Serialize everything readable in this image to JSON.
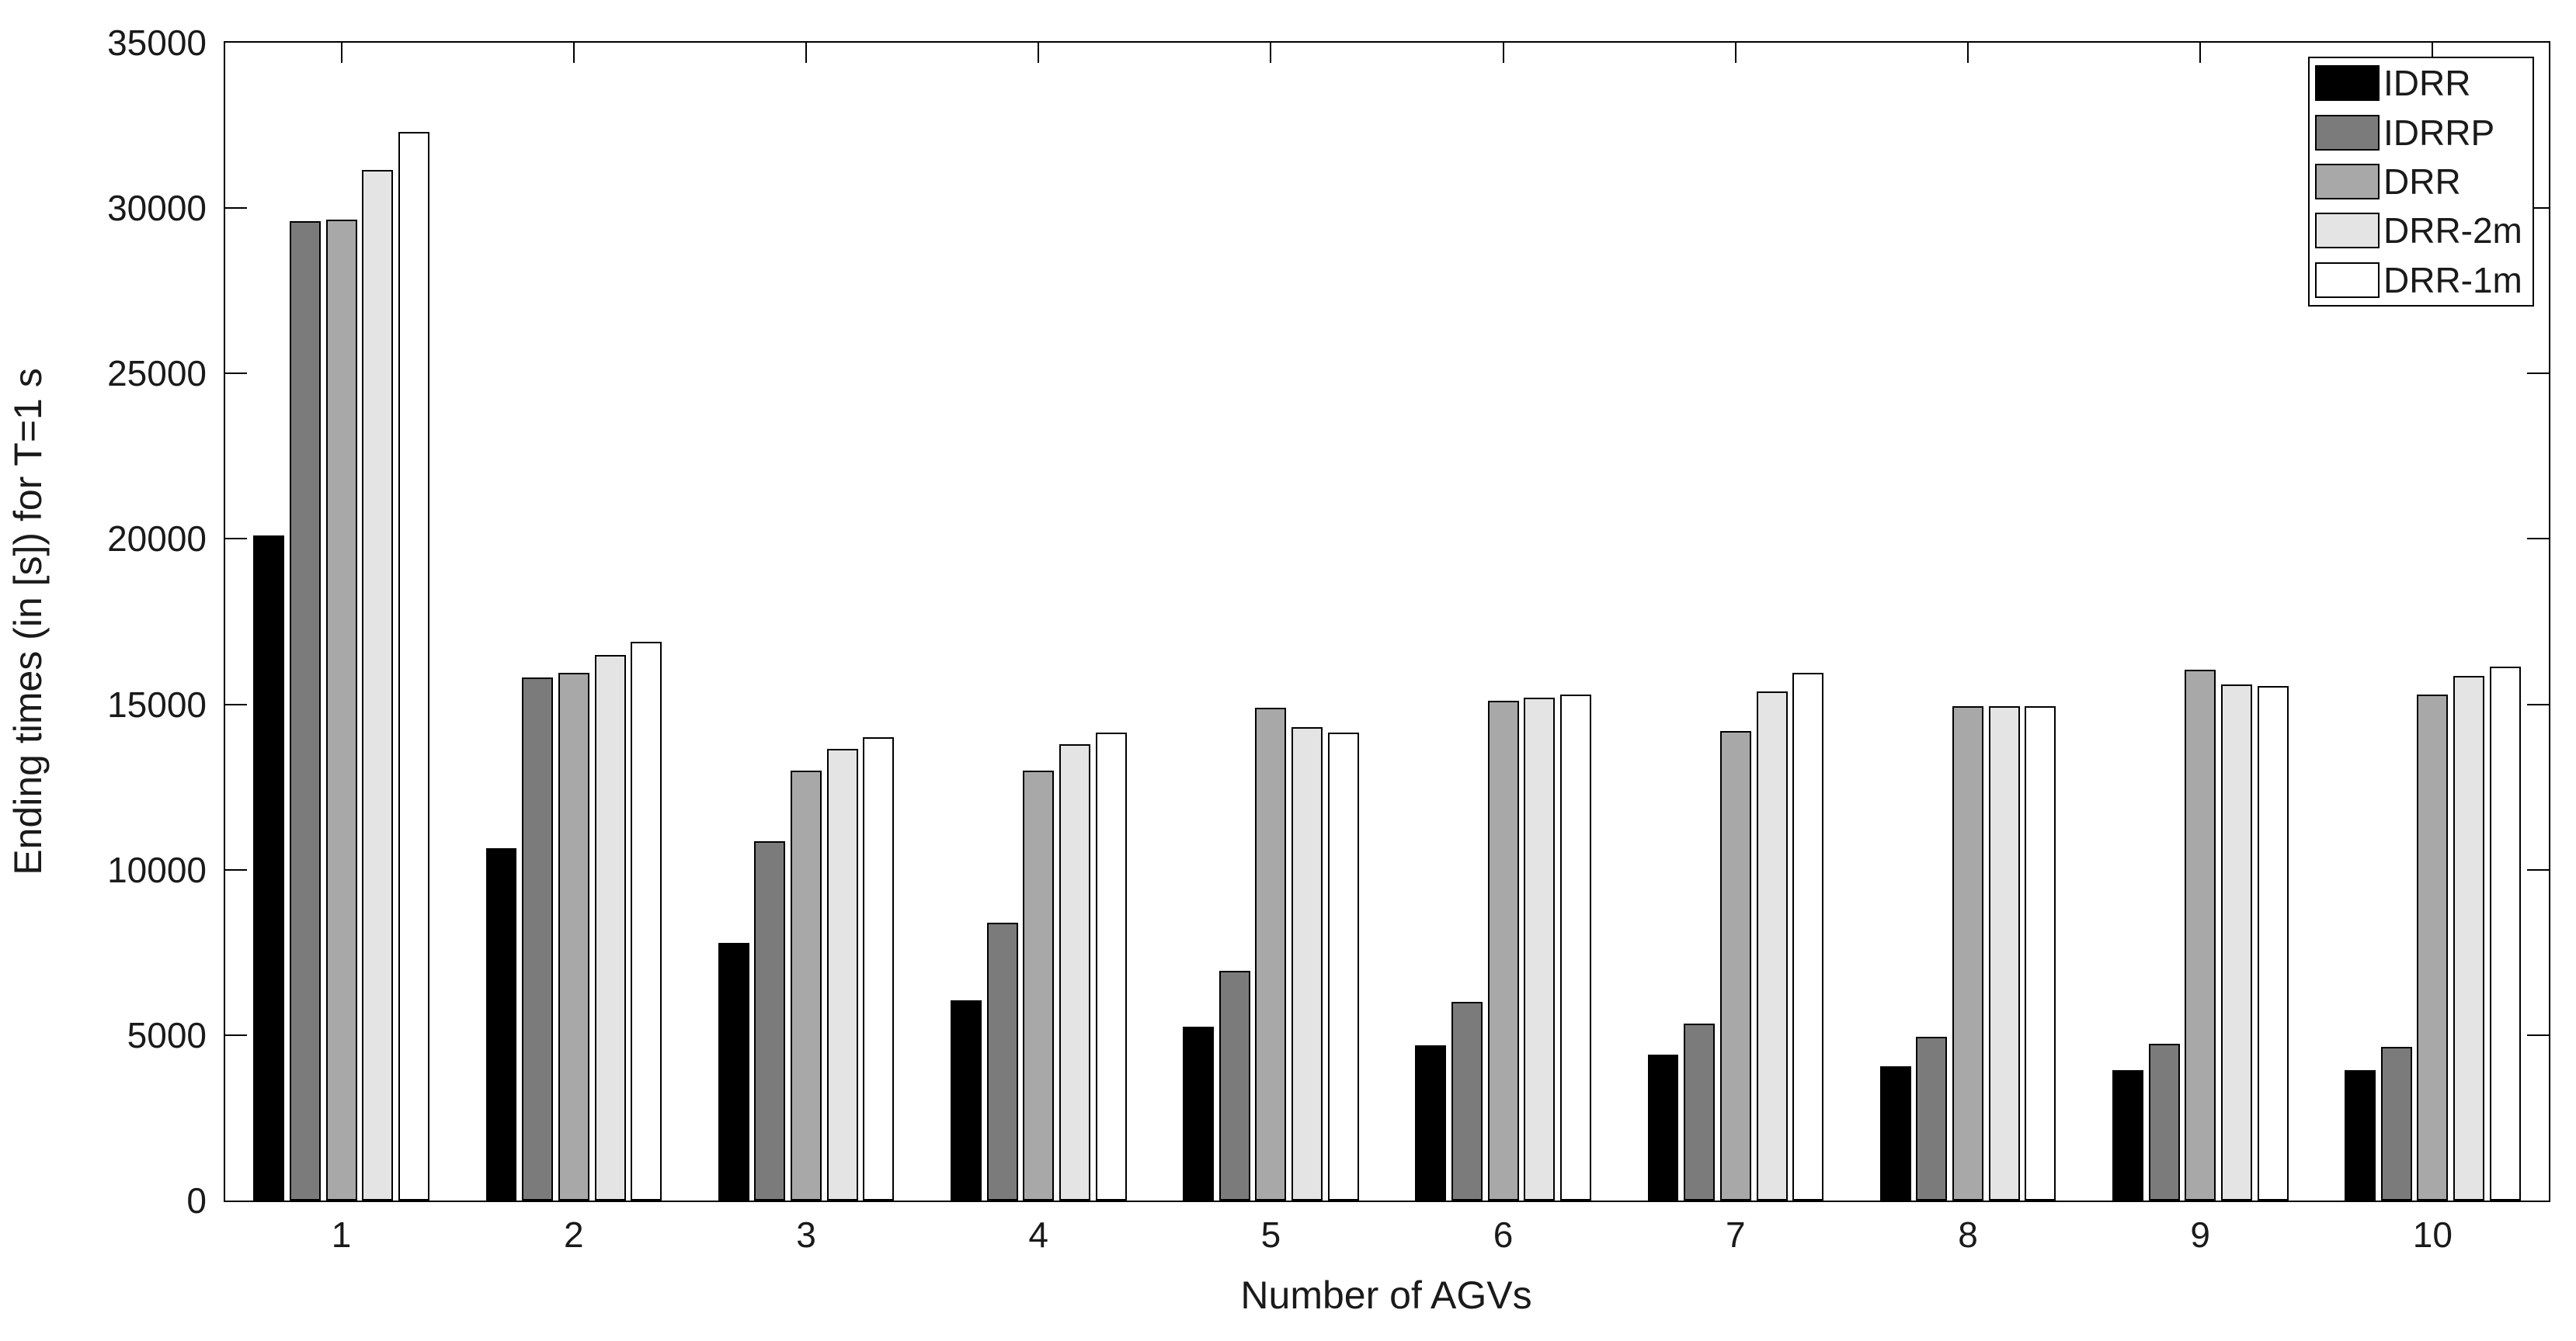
{
  "chart_data": {
    "type": "bar",
    "title": "",
    "xlabel": "Number of AGVs",
    "ylabel": "Ending times (in [s]) for T=1 s",
    "categories": [
      "1",
      "2",
      "3",
      "4",
      "5",
      "6",
      "7",
      "8",
      "9",
      "10"
    ],
    "series": [
      {
        "name": "IDRR",
        "color": "#000000",
        "values": [
          20100,
          10650,
          7800,
          6050,
          5250,
          4700,
          4400,
          4050,
          3950,
          3950
        ]
      },
      {
        "name": "IDRRP",
        "color": "#7b7b7b",
        "values": [
          29600,
          15800,
          10850,
          8400,
          6950,
          6000,
          5350,
          4950,
          4750,
          4650
        ]
      },
      {
        "name": "DRR",
        "color": "#a8a8a8",
        "values": [
          29650,
          15950,
          13000,
          13000,
          14900,
          15100,
          14200,
          14950,
          16050,
          15300
        ]
      },
      {
        "name": "DRR-2m",
        "color": "#e4e4e4",
        "values": [
          31150,
          16500,
          13650,
          13800,
          14300,
          15200,
          15400,
          14950,
          15600,
          15850
        ]
      },
      {
        "name": "DRR-1m",
        "color": "#ffffff",
        "values": [
          32300,
          16900,
          14000,
          14150,
          14150,
          15300,
          15950,
          14950,
          15550,
          16150
        ]
      }
    ],
    "ylim": [
      0,
      35000
    ],
    "ytick_step": 5000,
    "yticks": [
      "0",
      "5000",
      "10000",
      "15000",
      "20000",
      "25000",
      "30000",
      "35000"
    ],
    "legend_position": "top-right",
    "grid": false,
    "bar_edge_color": "#000000",
    "axis_color": "#000000"
  }
}
